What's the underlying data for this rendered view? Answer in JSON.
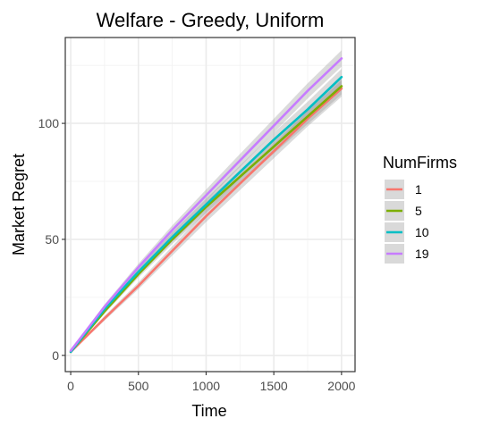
{
  "chart_data": {
    "type": "line",
    "title": "Welfare - Greedy, Uniform",
    "xlabel": "Time",
    "ylabel": "Market Regret",
    "xlim": [
      -40,
      2100
    ],
    "ylim": [
      -7,
      137
    ],
    "x_ticks": [
      0,
      500,
      1000,
      1500,
      2000
    ],
    "y_ticks": [
      0,
      50,
      100
    ],
    "x_tick_labels": [
      "0",
      "500",
      "1000",
      "1500",
      "2000"
    ],
    "y_tick_labels": [
      "0",
      "50",
      "100"
    ],
    "grid": true,
    "confidence_band": true,
    "legend": {
      "title": "NumFirms",
      "placement": "right"
    },
    "x": [
      0,
      250,
      500,
      750,
      1000,
      1250,
      1500,
      1750,
      2000
    ],
    "series": [
      {
        "name": "1",
        "color": "#F8766D",
        "values": [
          1.5,
          16,
          30,
          45,
          60,
          74,
          88,
          102,
          115
        ]
      },
      {
        "name": "5",
        "color": "#7CAE00",
        "values": [
          1.5,
          19,
          35,
          50,
          64,
          77,
          90,
          103,
          116
        ]
      },
      {
        "name": "10",
        "color": "#00BFC4",
        "values": [
          1.5,
          20,
          36,
          51,
          65,
          79,
          93,
          106,
          120
        ]
      },
      {
        "name": "19",
        "color": "#C77CFF",
        "values": [
          2.0,
          21,
          38,
          54,
          69,
          84,
          99,
          114,
          128
        ]
      }
    ],
    "band_halfwidth": [
      0.3,
      1.0,
      1.5,
      2.0,
      2.5,
      2.8,
      3.0,
      3.3,
      3.5
    ]
  }
}
